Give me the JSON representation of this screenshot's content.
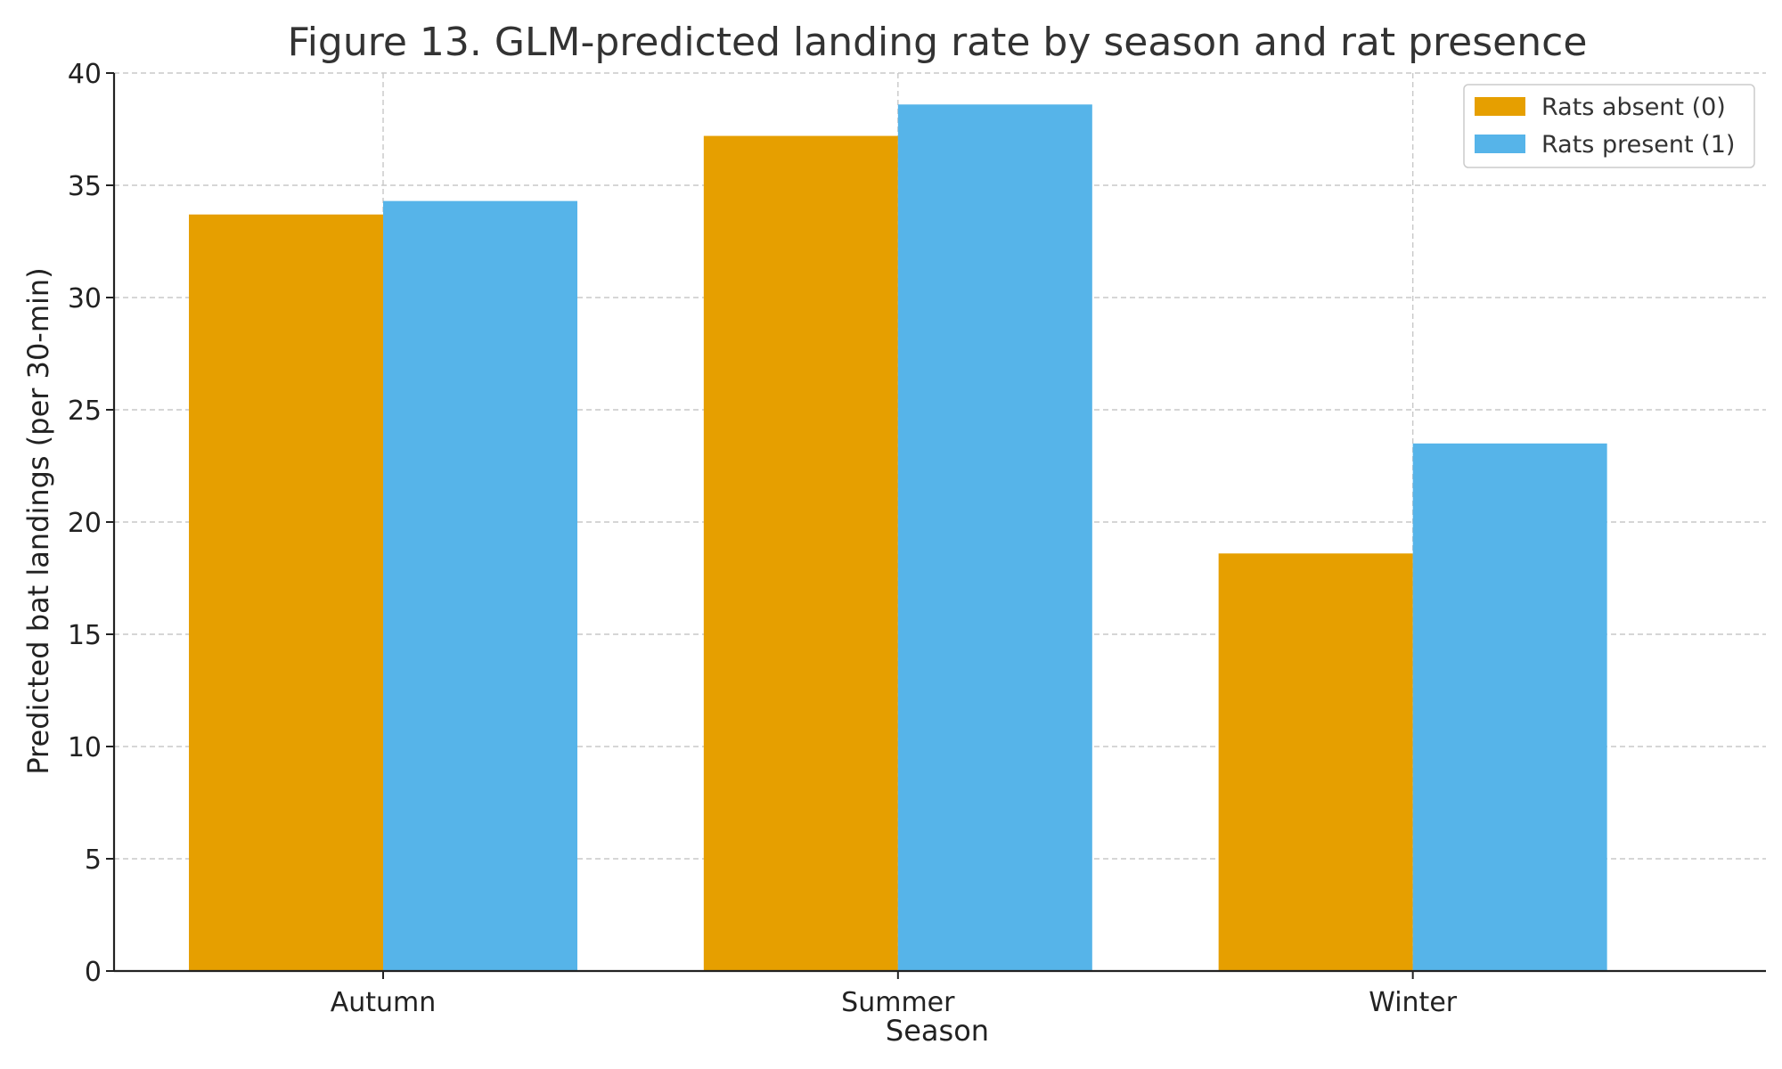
{
  "chart_data": {
    "type": "bar",
    "title": "Figure 13. GLM-predicted landing rate by season and rat presence",
    "xlabel": "Season",
    "ylabel": "Predicted bat landings (per 30-min)",
    "categories": [
      "Autumn",
      "Summer",
      "Winter"
    ],
    "series": [
      {
        "name": "Rats absent (0)",
        "color": "#E69F00",
        "values": [
          33.7,
          37.2,
          18.6
        ]
      },
      {
        "name": "Rats present (1)",
        "color": "#56B4E9",
        "values": [
          34.3,
          38.6,
          23.5
        ]
      }
    ],
    "ylim": [
      0,
      40
    ],
    "yticks": [
      0,
      5,
      10,
      15,
      20,
      25,
      30,
      35,
      40
    ],
    "grid": true,
    "legend_position": "top-right"
  }
}
